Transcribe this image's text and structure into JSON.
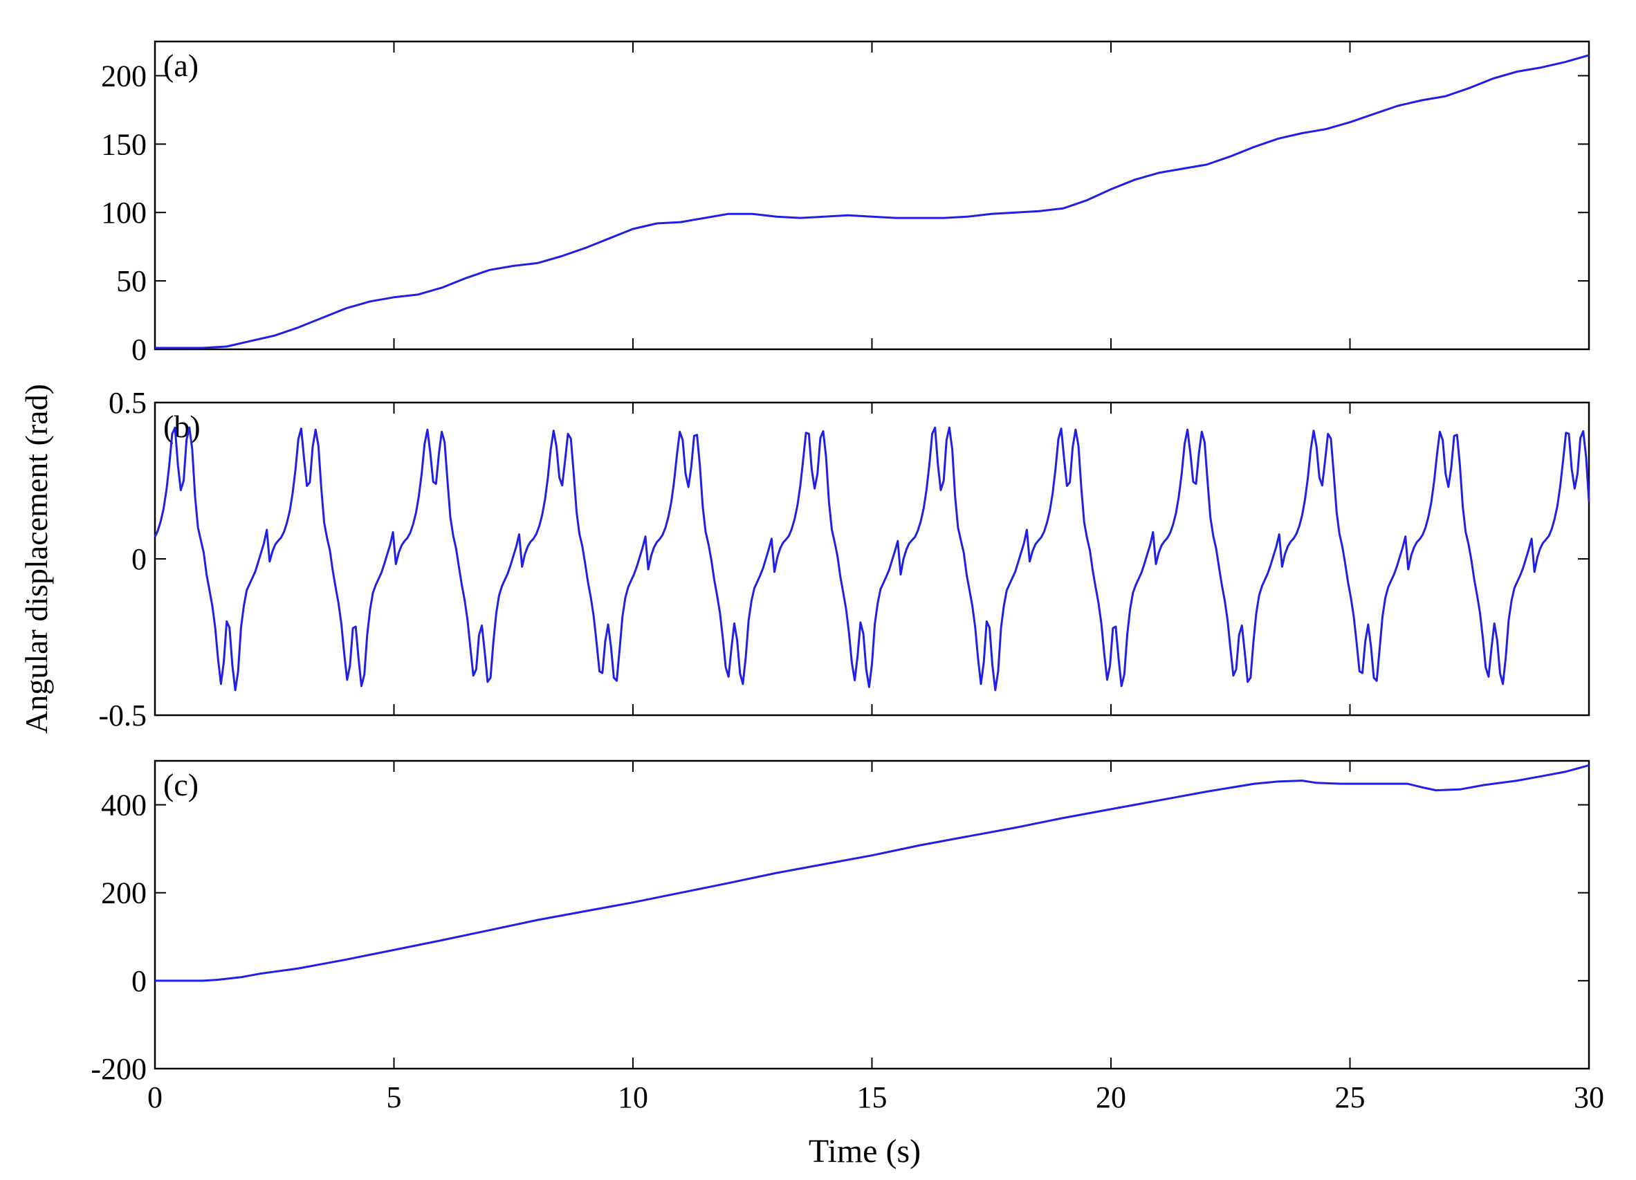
{
  "figure": {
    "xlabel": "Time (s)",
    "ylabel": "Angular displacement (rad)",
    "line_color": "#1f1fe6",
    "ylabel_color": "#8b4513"
  },
  "chart_data": [
    {
      "type": "line",
      "panel_label": "(a)",
      "xlim": [
        0,
        30
      ],
      "ylim": [
        0,
        225
      ],
      "xticks": [
        0,
        5,
        10,
        15,
        20,
        25,
        30
      ],
      "yticks": [
        0,
        50,
        100,
        150,
        200
      ],
      "ytick_labels": [
        "0",
        "50",
        "100",
        "150",
        "200"
      ],
      "grid": false,
      "series": [
        {
          "x": [
            0,
            1,
            1.5,
            2,
            2.5,
            3,
            3.5,
            4,
            4.5,
            5,
            5.5,
            6,
            6.5,
            7,
            7.5,
            8,
            8.5,
            9,
            9.5,
            10,
            10.5,
            11,
            11.5,
            12,
            12.5,
            13,
            13.5,
            14,
            14.5,
            15,
            15.5,
            16,
            16.5,
            17,
            17.5,
            18,
            18.5,
            19,
            19.5,
            20,
            20.5,
            21,
            21.5,
            22,
            22.5,
            23,
            23.5,
            24,
            24.5,
            25,
            25.5,
            26,
            26.5,
            27,
            27.5,
            28,
            28.5,
            29,
            29.5,
            30
          ],
          "y": [
            1,
            1,
            2,
            6,
            10,
            16,
            23,
            30,
            35,
            38,
            40,
            45,
            52,
            58,
            61,
            63,
            68,
            74,
            81,
            88,
            92,
            93,
            96,
            99,
            99,
            97,
            96,
            97,
            98,
            97,
            96,
            96,
            96,
            97,
            99,
            100,
            101,
            103,
            109,
            117,
            124,
            129,
            132,
            135,
            141,
            148,
            154,
            158,
            161,
            166,
            172,
            178,
            182,
            185,
            191,
            198,
            203,
            206,
            210,
            215
          ]
        }
      ]
    },
    {
      "type": "line",
      "panel_label": "(b)",
      "xlim": [
        0,
        30
      ],
      "ylim": [
        -0.5,
        0.5
      ],
      "xticks": [
        0,
        5,
        10,
        15,
        20,
        25,
        30
      ],
      "yticks": [
        -0.5,
        0,
        0.5
      ],
      "ytick_labels": [
        "-0.5",
        "0",
        "0.5"
      ],
      "grid": false,
      "series": [
        {
          "period": 2.65,
          "phase_offset": 0.3,
          "x": [
            0,
            0.06,
            0.12,
            0.18,
            0.24,
            0.3,
            0.36,
            0.42,
            0.48,
            0.54,
            0.6,
            0.66,
            0.72,
            0.78,
            0.84,
            0.9,
            0.96,
            1.02,
            1.08,
            1.14,
            1.2,
            1.26,
            1.32,
            1.38,
            1.44,
            1.5,
            1.56,
            1.62,
            1.68,
            1.74,
            1.8,
            1.86,
            1.92,
            1.98,
            2.04,
            2.1,
            2.16,
            2.22,
            2.28,
            2.34,
            2.4,
            2.46,
            2.52,
            2.58,
            2.65
          ],
          "y": [
            -0.05,
            0.0,
            0.03,
            0.05,
            0.06,
            0.07,
            0.09,
            0.12,
            0.16,
            0.22,
            0.3,
            0.4,
            0.42,
            0.3,
            0.22,
            0.25,
            0.38,
            0.42,
            0.35,
            0.2,
            0.1,
            0.06,
            0.02,
            -0.05,
            -0.1,
            -0.15,
            -0.22,
            -0.32,
            -0.4,
            -0.33,
            -0.2,
            -0.22,
            -0.34,
            -0.42,
            -0.36,
            -0.22,
            -0.15,
            -0.1,
            -0.08,
            -0.06,
            -0.04,
            -0.01,
            0.02,
            0.05,
            0.1
          ]
        }
      ]
    },
    {
      "type": "line",
      "panel_label": "(c)",
      "xlim": [
        0,
        30
      ],
      "ylim": [
        -200,
        500
      ],
      "xticks": [
        0,
        5,
        10,
        15,
        20,
        25,
        30
      ],
      "yticks": [
        -200,
        0,
        200,
        400
      ],
      "ytick_labels": [
        "-200",
        "0",
        "200",
        "400"
      ],
      "grid": false,
      "series": [
        {
          "x": [
            0,
            1,
            1.3,
            1.8,
            2.2,
            3,
            4,
            5,
            6,
            7,
            8,
            9,
            10,
            11,
            12,
            13,
            14,
            15,
            16,
            17,
            18,
            19,
            20,
            21,
            22,
            23,
            23.5,
            24,
            24.3,
            24.8,
            25.5,
            26.2,
            26.5,
            26.8,
            27.3,
            27.8,
            28.5,
            29,
            29.5,
            30
          ],
          "y": [
            0,
            0,
            2,
            8,
            16,
            28,
            48,
            70,
            92,
            115,
            138,
            158,
            178,
            200,
            222,
            245,
            265,
            285,
            308,
            328,
            348,
            370,
            390,
            410,
            430,
            448,
            453,
            455,
            450,
            448,
            448,
            448,
            440,
            433,
            435,
            445,
            455,
            465,
            475,
            490
          ]
        }
      ]
    }
  ]
}
